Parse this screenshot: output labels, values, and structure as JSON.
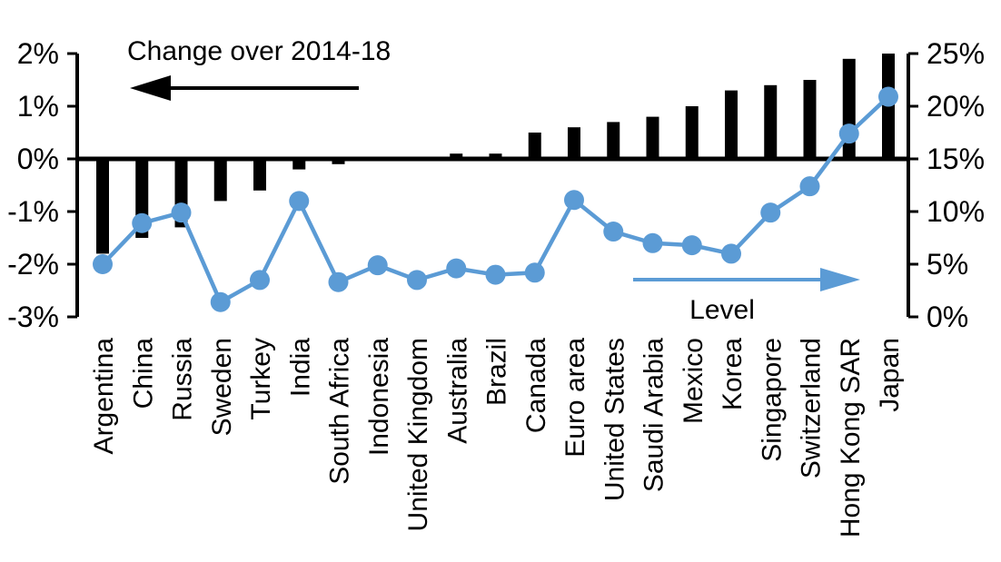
{
  "chart_data": {
    "type": "bar",
    "subtype": "bar+line dual-axis",
    "title": "",
    "categories": [
      "Argentina",
      "China",
      "Russia",
      "Sweden",
      "Turkey",
      "India",
      "South Africa",
      "Indonesia",
      "United Kingdom",
      "Australia",
      "Brazil",
      "Canada",
      "Euro area",
      "United States",
      "Saudi Arabia",
      "Mexico",
      "Korea",
      "Singapore",
      "Switzerland",
      "Hong Kong SAR",
      "Japan"
    ],
    "series": [
      {
        "name": "Change over 2014-18",
        "type": "bar",
        "axis": "left",
        "color": "#000000",
        "values": [
          -1.8,
          -1.5,
          -1.3,
          -0.8,
          -0.6,
          -0.2,
          -0.1,
          0.0,
          0.0,
          0.1,
          0.1,
          0.5,
          0.6,
          0.7,
          0.8,
          1.0,
          1.3,
          1.4,
          1.5,
          1.9,
          2.0
        ]
      },
      {
        "name": "Level",
        "type": "line",
        "axis": "right",
        "color": "#5B9BD5",
        "marker": "circle",
        "values": [
          5.0,
          8.9,
          9.9,
          1.4,
          3.5,
          11.0,
          3.3,
          4.9,
          3.5,
          4.6,
          4.0,
          4.2,
          11.1,
          8.1,
          7.0,
          6.8,
          6.0,
          9.9,
          12.4,
          17.4,
          20.9
        ]
      }
    ],
    "left_axis": {
      "min": -3,
      "max": 2,
      "step": 1,
      "tick_labels": [
        "2%",
        "1%",
        "0%",
        "-1%",
        "-2%",
        "-3%"
      ]
    },
    "right_axis": {
      "min": 0,
      "max": 25,
      "step": 5,
      "tick_labels": [
        "25%",
        "20%",
        "15%",
        "10%",
        "5%",
        "0%"
      ]
    },
    "annotations": [
      {
        "text": "Change over 2014-18",
        "arrow": "left",
        "arrow_color": "#000000"
      },
      {
        "text": "Level",
        "arrow": "right",
        "arrow_color": "#5B9BD5"
      }
    ],
    "grid": false,
    "legend_position": "in-plot annotations",
    "x_label_rotation": -90
  },
  "colors": {
    "bar": "#000000",
    "line": "#5B9BD5",
    "axis": "#000000",
    "background": "#ffffff"
  }
}
